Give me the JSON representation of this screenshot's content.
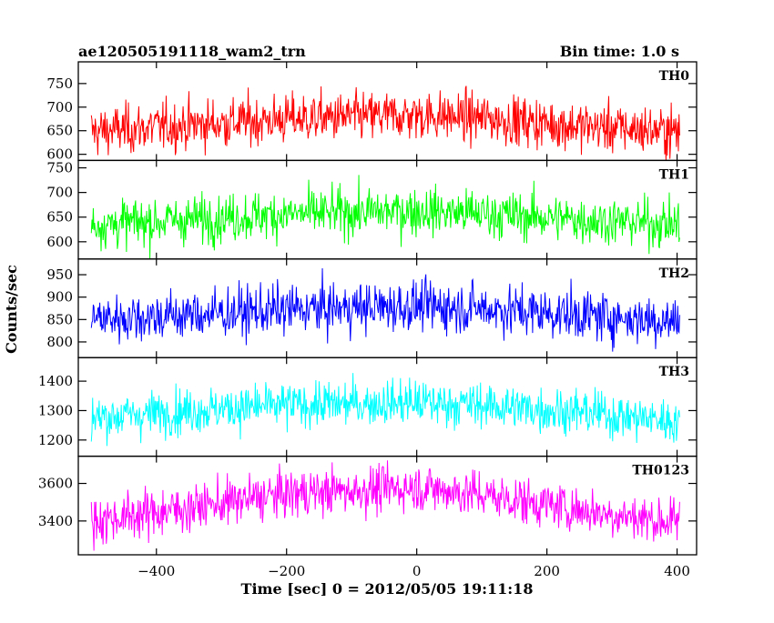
{
  "chart_data": {
    "type": "line",
    "title": "ae120505191118_wam2_trn",
    "subtitle": "Bin time: 1.0 s",
    "xlabel": "Time [sec] 0 = 2012/05/05 19:11:18",
    "ylabel": "Counts/sec",
    "x_range": [
      -500,
      404
    ],
    "xlim": [
      -520,
      430
    ],
    "x_ticks": [
      -400,
      -200,
      0,
      200,
      400
    ],
    "x_tick_labels": [
      "−400",
      "−200",
      "0",
      "200",
      "400"
    ],
    "grid": false,
    "panels": [
      {
        "name": "TH0",
        "color": "#ff0000",
        "ylim": [
          587,
          796
        ],
        "y_ticks": [
          600,
          650,
          700,
          750
        ],
        "trend": [
          {
            "x": -500,
            "y": 648
          },
          {
            "x": -350,
            "y": 662
          },
          {
            "x": -200,
            "y": 675
          },
          {
            "x": 0,
            "y": 683
          },
          {
            "x": 100,
            "y": 677
          },
          {
            "x": 250,
            "y": 660
          },
          {
            "x": 404,
            "y": 648
          }
        ],
        "noise_sd": 26
      },
      {
        "name": "TH1",
        "color": "#00ff00",
        "ylim": [
          565,
          765
        ],
        "y_ticks": [
          600,
          650,
          700,
          750
        ],
        "trend": [
          {
            "x": -500,
            "y": 634
          },
          {
            "x": -350,
            "y": 645
          },
          {
            "x": -200,
            "y": 656
          },
          {
            "x": 0,
            "y": 663
          },
          {
            "x": 100,
            "y": 657
          },
          {
            "x": 250,
            "y": 645
          },
          {
            "x": 404,
            "y": 635
          }
        ],
        "noise_sd": 24
      },
      {
        "name": "TH2",
        "color": "#0000ff",
        "ylim": [
          765,
          985
        ],
        "y_ticks": [
          800,
          850,
          900,
          950
        ],
        "trend": [
          {
            "x": -500,
            "y": 852
          },
          {
            "x": -350,
            "y": 860
          },
          {
            "x": -200,
            "y": 872
          },
          {
            "x": 0,
            "y": 880
          },
          {
            "x": 100,
            "y": 875
          },
          {
            "x": 250,
            "y": 860
          },
          {
            "x": 404,
            "y": 846
          }
        ],
        "noise_sd": 28
      },
      {
        "name": "TH3",
        "color": "#00ffff",
        "ylim": [
          1145,
          1480
        ],
        "y_ticks": [
          1200,
          1300,
          1400
        ],
        "trend": [
          {
            "x": -500,
            "y": 1275
          },
          {
            "x": -350,
            "y": 1300
          },
          {
            "x": -200,
            "y": 1318
          },
          {
            "x": 0,
            "y": 1328
          },
          {
            "x": 100,
            "y": 1318
          },
          {
            "x": 250,
            "y": 1295
          },
          {
            "x": 404,
            "y": 1262
          }
        ],
        "noise_sd": 38
      },
      {
        "name": "TH0123",
        "color": "#ff00ff",
        "ylim": [
          3220,
          3745
        ],
        "y_ticks": [
          3400,
          3600
        ],
        "trend": [
          {
            "x": -500,
            "y": 3400
          },
          {
            "x": -350,
            "y": 3470
          },
          {
            "x": -200,
            "y": 3545
          },
          {
            "x": 0,
            "y": 3580
          },
          {
            "x": 100,
            "y": 3540
          },
          {
            "x": 250,
            "y": 3460
          },
          {
            "x": 404,
            "y": 3390
          }
        ],
        "noise_sd": 62
      }
    ]
  }
}
